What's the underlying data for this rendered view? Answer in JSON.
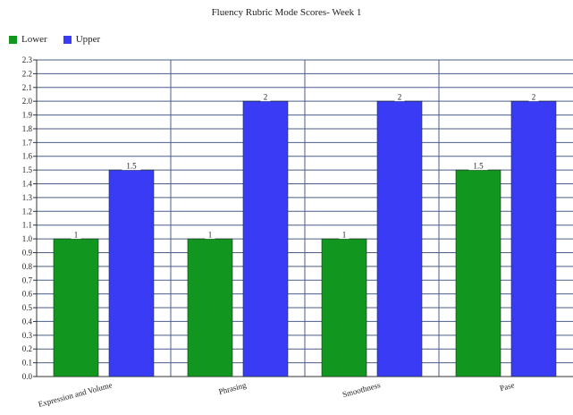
{
  "chart_data": {
    "type": "bar",
    "title": "Fluency Rubric Mode Scores- Week 1",
    "categories": [
      "Expression and Volume",
      "Phrasing",
      "Smoothness",
      "Pase"
    ],
    "series": [
      {
        "name": "Lower",
        "color": "#11961f",
        "values": [
          1,
          1,
          1,
          1.5
        ],
        "labels": [
          "1",
          "1",
          "1",
          "1.5"
        ]
      },
      {
        "name": "Upper",
        "color": "#3a3cf5",
        "values": [
          1.5,
          2,
          2,
          2
        ],
        "labels": [
          "1.5",
          "2",
          "2",
          "2"
        ]
      }
    ],
    "ylim": [
      0,
      2.3
    ],
    "yticks": [
      "0.0",
      "0.1",
      "0.2",
      "0.3",
      "0.4",
      "0.5",
      "0.6",
      "0.7",
      "0.8",
      "0.9",
      "1.0",
      "1.1",
      "1.2",
      "1.3",
      "1.4",
      "1.5",
      "1.6",
      "1.7",
      "1.8",
      "1.9",
      "2.0",
      "2.1",
      "2.2",
      "2.3"
    ],
    "grid": true,
    "legend_position": "top-left",
    "xlabel": "",
    "ylabel": ""
  }
}
